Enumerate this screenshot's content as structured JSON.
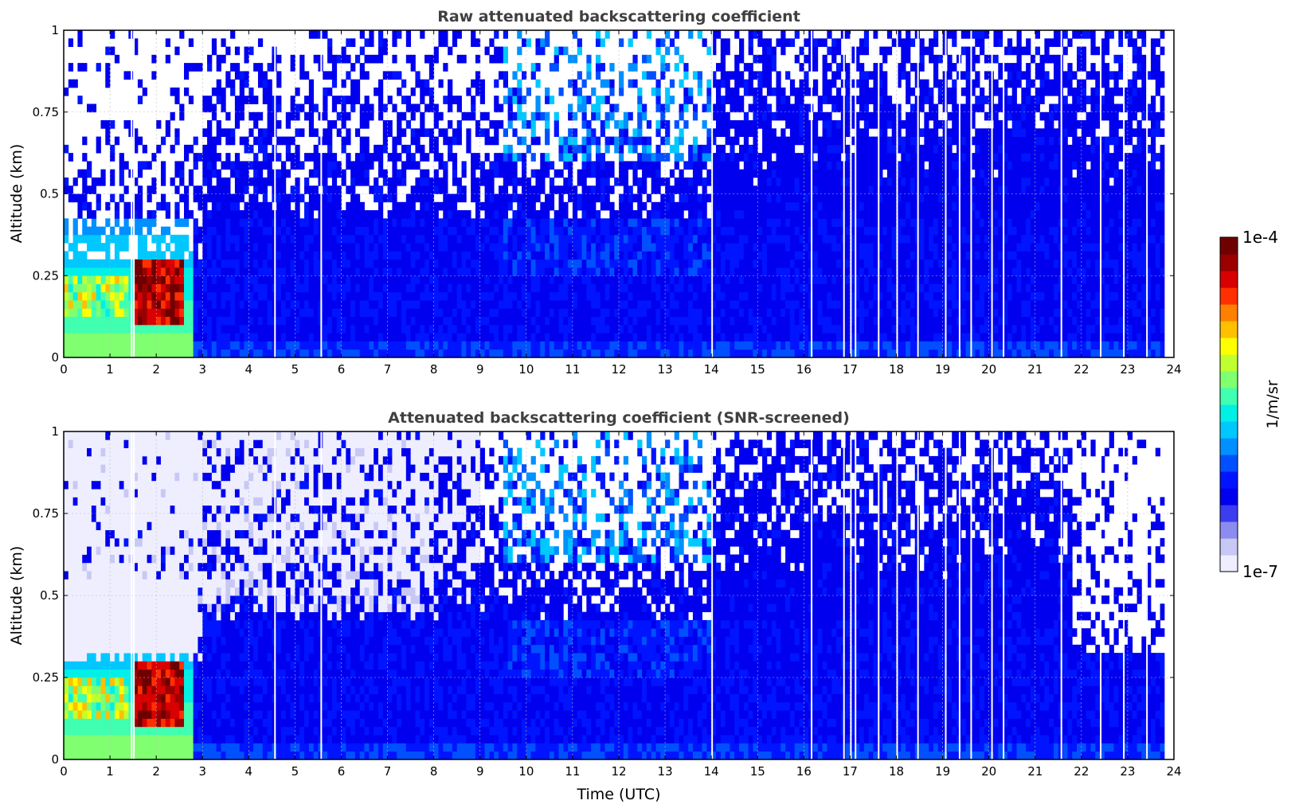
{
  "chart_data": [
    {
      "type": "heatmap",
      "title": "Raw attenuated backscattering coefficient",
      "xlabel": "",
      "ylabel": "Altitude (km)",
      "xlim": [
        0,
        24
      ],
      "ylim": [
        0,
        1
      ],
      "x_ticks": [
        "0",
        "1",
        "2",
        "3",
        "4",
        "5",
        "6",
        "7",
        "8",
        "9",
        "10",
        "11",
        "12",
        "13",
        "14",
        "15",
        "16",
        "17",
        "18",
        "19",
        "20",
        "21",
        "22",
        "23",
        "24"
      ],
      "y_ticks": [
        "0",
        "0.25",
        "0.5",
        "0.75",
        "1"
      ],
      "grid": true,
      "data_end_time": 23.8,
      "gaps": [
        1.45,
        1.5,
        4.55,
        5.55,
        14.0,
        16.15,
        16.85,
        17.0,
        17.1,
        17.6,
        18.0,
        18.45,
        19.05,
        19.35,
        19.6,
        20.05,
        20.3,
        21.55,
        22.4,
        22.9,
        23.4
      ],
      "features": [
        {
          "name": "aerosol layer",
          "time": [
            0,
            2.8
          ],
          "altitude": [
            0,
            0.4
          ],
          "level": "high"
        },
        {
          "name": "dense layer",
          "time": [
            1.5,
            2.6
          ],
          "altitude": [
            0.1,
            0.3
          ],
          "level": "saturated"
        }
      ]
    },
    {
      "type": "heatmap",
      "title": "Attenuated backscattering coefficient (SNR-screened)",
      "xlabel": "Time (UTC)",
      "ylabel": "Altitude (km)",
      "xlim": [
        0,
        24
      ],
      "ylim": [
        0,
        1
      ],
      "x_ticks": [
        "0",
        "1",
        "2",
        "3",
        "4",
        "5",
        "6",
        "7",
        "8",
        "9",
        "10",
        "11",
        "12",
        "13",
        "14",
        "15",
        "16",
        "17",
        "18",
        "19",
        "20",
        "21",
        "22",
        "23",
        "24"
      ],
      "y_ticks": [
        "0",
        "0.25",
        "0.5",
        "0.75",
        "1"
      ],
      "grid": true,
      "data_end_time": 23.8,
      "screened_top_after_22h": 0.3
    }
  ],
  "colorbar": {
    "label": "1/m/sr",
    "max_label": "1e-4",
    "min_label": "1e-7",
    "colors": [
      "#eeeeff",
      "#c8c8f5",
      "#8c8cf0",
      "#3c3cf0",
      "#0000ee",
      "#0014ff",
      "#0050ff",
      "#0090ff",
      "#00c8ff",
      "#00f0e6",
      "#40ffb0",
      "#80ff70",
      "#c0ff30",
      "#ffff00",
      "#ffc000",
      "#ff8000",
      "#ff3000",
      "#d80000",
      "#9a0000",
      "#700000"
    ]
  }
}
